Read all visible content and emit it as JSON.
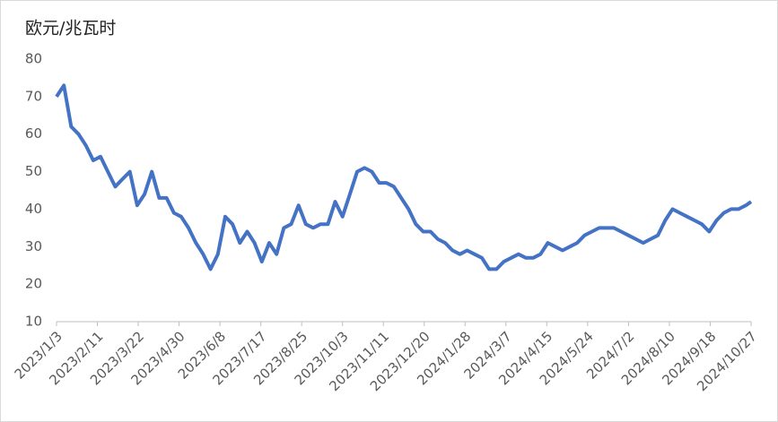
{
  "chart_data": {
    "type": "line",
    "title": "欧元/兆瓦时",
    "x": [
      "2023/1/3",
      "2023/1/10",
      "2023/1/17",
      "2023/1/24",
      "2023/1/31",
      "2023/2/7",
      "2023/2/14",
      "2023/2/21",
      "2023/2/28",
      "2023/3/7",
      "2023/3/14",
      "2023/3/21",
      "2023/3/28",
      "2023/4/4",
      "2023/4/11",
      "2023/4/18",
      "2023/4/25",
      "2023/5/2",
      "2023/5/9",
      "2023/5/16",
      "2023/5/23",
      "2023/5/30",
      "2023/6/6",
      "2023/6/13",
      "2023/6/20",
      "2023/6/27",
      "2023/7/4",
      "2023/7/11",
      "2023/7/18",
      "2023/7/25",
      "2023/8/1",
      "2023/8/8",
      "2023/8/15",
      "2023/8/22",
      "2023/8/29",
      "2023/9/5",
      "2023/9/12",
      "2023/9/19",
      "2023/9/26",
      "2023/10/3",
      "2023/10/10",
      "2023/10/17",
      "2023/10/24",
      "2023/10/31",
      "2023/11/7",
      "2023/11/14",
      "2023/11/21",
      "2023/11/28",
      "2023/12/5",
      "2023/12/12",
      "2023/12/19",
      "2023/12/26",
      "2024/1/2",
      "2024/1/9",
      "2024/1/16",
      "2024/1/23",
      "2024/1/30",
      "2024/2/6",
      "2024/2/13",
      "2024/2/20",
      "2024/2/27",
      "2024/3/5",
      "2024/3/12",
      "2024/3/19",
      "2024/3/26",
      "2024/4/2",
      "2024/4/9",
      "2024/4/16",
      "2024/4/23",
      "2024/4/30",
      "2024/5/7",
      "2024/5/14",
      "2024/5/21",
      "2024/5/28",
      "2024/6/4",
      "2024/6/11",
      "2024/6/18",
      "2024/6/25",
      "2024/7/2",
      "2024/7/9",
      "2024/7/16",
      "2024/7/23",
      "2024/7/30",
      "2024/8/6",
      "2024/8/13",
      "2024/8/20",
      "2024/8/27",
      "2024/9/3",
      "2024/9/10",
      "2024/9/17",
      "2024/9/24",
      "2024/10/1",
      "2024/10/8",
      "2024/10/15",
      "2024/10/22",
      "2024/10/27"
    ],
    "series": [
      {
        "name": "欧元/兆瓦时",
        "color": "#4472c4",
        "values": [
          70,
          73,
          62,
          60,
          57,
          53,
          54,
          50,
          46,
          48,
          50,
          41,
          44,
          50,
          43,
          43,
          39,
          38,
          35,
          31,
          28,
          24,
          28,
          38,
          36,
          31,
          34,
          31,
          26,
          31,
          28,
          35,
          36,
          41,
          36,
          35,
          36,
          36,
          42,
          38,
          44,
          50,
          51,
          50,
          47,
          47,
          46,
          43,
          40,
          36,
          34,
          34,
          32,
          31,
          29,
          28,
          29,
          28,
          27,
          24,
          24,
          26,
          27,
          28,
          27,
          27,
          28,
          31,
          30,
          29,
          30,
          31,
          33,
          34,
          35,
          35,
          35,
          34,
          33,
          32,
          31,
          32,
          33,
          37,
          40,
          39,
          38,
          37,
          36,
          34,
          37,
          39,
          40,
          40,
          41,
          42
        ]
      }
    ],
    "xticks": [
      "2023/1/3",
      "2023/2/11",
      "2023/3/22",
      "2023/4/30",
      "2023/6/8",
      "2023/7/17",
      "2023/8/25",
      "2023/10/3",
      "2023/11/11",
      "2023/12/20",
      "2024/1/28",
      "2024/3/7",
      "2024/4/15",
      "2024/5/24",
      "2024/7/2",
      "2024/8/10",
      "2024/9/18",
      "2024/10/27"
    ],
    "ylim": [
      10,
      80
    ],
    "yticks": [
      10,
      20,
      30,
      40,
      50,
      60,
      70,
      80
    ]
  }
}
